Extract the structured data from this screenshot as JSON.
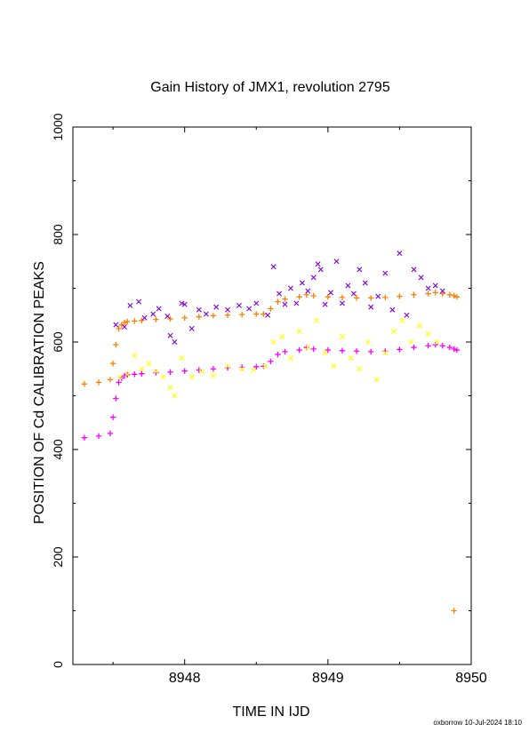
{
  "chart_data": {
    "type": "scatter",
    "title": "Gain History of JMX1, revolution 2795",
    "xlabel": "TIME IN IJD",
    "ylabel": "POSITION OF Cd CALIBRATION PEAKS",
    "xlim": [
      8947.22,
      8950
    ],
    "ylim": [
      0,
      1000
    ],
    "x_ticks": [
      "8948",
      "8949",
      "8950"
    ],
    "y_ticks": [
      "0",
      "200",
      "400",
      "600",
      "800",
      "1000"
    ],
    "grid": false,
    "legend": "none",
    "colors": {
      "fit_upper": "#ff8000",
      "points_upper": "#8000e0",
      "fit_lower": "#ff00ff",
      "points_lower": "#ffff00"
    },
    "series": [
      {
        "marker": "plus",
        "color": "#ff8000",
        "x": [
          8947.3,
          8947.4,
          8947.48,
          8947.5,
          8947.52,
          8947.54,
          8947.56,
          8947.58,
          8947.6,
          8947.65,
          8947.7,
          8947.8,
          8947.9,
          8948.0,
          8948.1,
          8948.2,
          8948.3,
          8948.4,
          8948.5,
          8948.55,
          8948.6,
          8948.65,
          8948.7,
          8948.8,
          8948.85,
          8948.9,
          8949.0,
          8949.1,
          8949.2,
          8949.3,
          8949.4,
          8949.5,
          8949.6,
          8949.7,
          8949.75,
          8949.8,
          8949.85,
          8949.88,
          8949.9
        ],
        "y": [
          522,
          525,
          530,
          560,
          595,
          625,
          632,
          636,
          638,
          639,
          640,
          642,
          643,
          645,
          647,
          649,
          650,
          651,
          652,
          652,
          662,
          675,
          680,
          684,
          688,
          686,
          684,
          683,
          682,
          682,
          683,
          685,
          688,
          690,
          692,
          690,
          688,
          686,
          684
        ]
      },
      {
        "marker": "x",
        "color": "#8000e0",
        "x": [
          8947.52,
          8947.58,
          8947.62,
          8947.68,
          8947.72,
          8947.78,
          8947.82,
          8947.88,
          8947.9,
          8947.93,
          8947.98,
          8948.0,
          8948.05,
          8948.1,
          8948.15,
          8948.22,
          8948.3,
          8948.38,
          8948.45,
          8948.5,
          8948.58,
          8948.62,
          8948.66,
          8948.7,
          8948.74,
          8948.78,
          8948.82,
          8948.86,
          8948.9,
          8948.93,
          8948.95,
          8948.98,
          8949.02,
          8949.06,
          8949.1,
          8949.14,
          8949.18,
          8949.22,
          8949.26,
          8949.3,
          8949.35,
          8949.4,
          8949.45,
          8949.5,
          8949.55,
          8949.6,
          8949.65,
          8949.7,
          8949.75,
          8949.8
        ],
        "y": [
          632,
          628,
          668,
          675,
          645,
          652,
          662,
          648,
          612,
          600,
          672,
          670,
          625,
          660,
          652,
          665,
          660,
          668,
          662,
          672,
          650,
          740,
          690,
          670,
          700,
          672,
          710,
          695,
          720,
          745,
          735,
          670,
          692,
          750,
          672,
          705,
          690,
          735,
          710,
          665,
          685,
          728,
          660,
          765,
          650,
          735,
          720,
          700,
          705,
          695
        ]
      },
      {
        "marker": "plus",
        "color": "#ff00ff",
        "x": [
          8947.3,
          8947.4,
          8947.48,
          8947.5,
          8947.52,
          8947.54,
          8947.56,
          8947.58,
          8947.6,
          8947.65,
          8947.7,
          8947.8,
          8947.9,
          8948.0,
          8948.1,
          8948.2,
          8948.3,
          8948.4,
          8948.5,
          8948.55,
          8948.6,
          8948.65,
          8948.7,
          8948.8,
          8948.85,
          8948.9,
          8949.0,
          8949.1,
          8949.2,
          8949.3,
          8949.4,
          8949.5,
          8949.6,
          8949.7,
          8949.75,
          8949.8,
          8949.85,
          8949.88,
          8949.9
        ],
        "y": [
          422,
          425,
          430,
          460,
          495,
          525,
          533,
          537,
          539,
          540,
          541,
          543,
          544,
          546,
          548,
          550,
          552,
          553,
          554,
          555,
          564,
          577,
          582,
          585,
          590,
          587,
          585,
          584,
          583,
          582,
          583,
          586,
          590,
          593,
          595,
          593,
          590,
          587,
          585
        ]
      },
      {
        "marker": "x",
        "color": "#ffff00",
        "x": [
          8947.55,
          8947.6,
          8947.65,
          8947.7,
          8947.75,
          8947.8,
          8947.85,
          8947.9,
          8947.93,
          8947.98,
          8948.05,
          8948.12,
          8948.2,
          8948.3,
          8948.4,
          8948.48,
          8948.56,
          8948.62,
          8948.68,
          8948.74,
          8948.8,
          8948.86,
          8948.92,
          8948.98,
          8949.04,
          8949.1,
          8949.16,
          8949.22,
          8949.28,
          8949.34,
          8949.4,
          8949.46,
          8949.52,
          8949.58,
          8949.64,
          8949.7,
          8949.76
        ],
        "y": [
          535,
          540,
          575,
          550,
          560,
          545,
          535,
          515,
          500,
          570,
          535,
          545,
          538,
          555,
          550,
          548,
          555,
          600,
          610,
          570,
          620,
          590,
          640,
          580,
          555,
          610,
          570,
          550,
          600,
          530,
          580,
          620,
          640,
          600,
          630,
          615,
          600
        ]
      },
      {
        "marker": "plus",
        "color": "#ff8000",
        "x": [
          8949.88
        ],
        "y": [
          100
        ]
      }
    ]
  },
  "footer": "oxborrow 10-Jul-2024 18:10"
}
